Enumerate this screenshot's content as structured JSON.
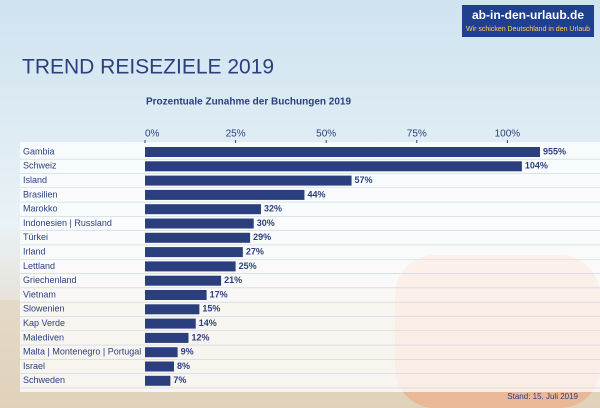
{
  "chart_data": {
    "type": "bar",
    "orientation": "horizontal",
    "title": "TREND REISEZIELE 2019",
    "subtitle": "Prozentuale Zunahme der Buchungen 2019",
    "logo": "ab-in-den-urlaub.de",
    "tagline": "Wir schicken Deutschland in den Urlaub",
    "footer": "Stand: 15. Juli 2019",
    "categories": [
      "Gambia",
      "Schweiz",
      "Island",
      "Brasilien",
      "Marokko",
      "Indonesien | Russland",
      "Türkei",
      "Irland",
      "Lettland",
      "Griechenland",
      "Vietnam",
      "Slowenien",
      "Kap Verde",
      "Malediven",
      "Malta | Montenegro | Portugal",
      "Israel",
      "Schweden"
    ],
    "values": [
      955,
      104,
      57,
      44,
      32,
      30,
      29,
      27,
      25,
      21,
      17,
      15,
      14,
      12,
      9,
      8,
      7
    ],
    "value_labels": [
      "955%",
      "104%",
      "57%",
      "44%",
      "32%",
      "30%",
      "29%",
      "27%",
      "25%",
      "21%",
      "17%",
      "15%",
      "14%",
      "12%",
      "9%",
      "8%",
      "7%"
    ],
    "color": "#2b3f7f",
    "xlim": [
      0,
      109
    ],
    "xticks": [
      {
        "value": 0,
        "label": "0%"
      },
      {
        "value": 25,
        "label": "25%"
      },
      {
        "value": 50,
        "label": "50%"
      },
      {
        "value": 75,
        "label": "75%"
      },
      {
        "value": 100,
        "label": "100%"
      }
    ]
  }
}
